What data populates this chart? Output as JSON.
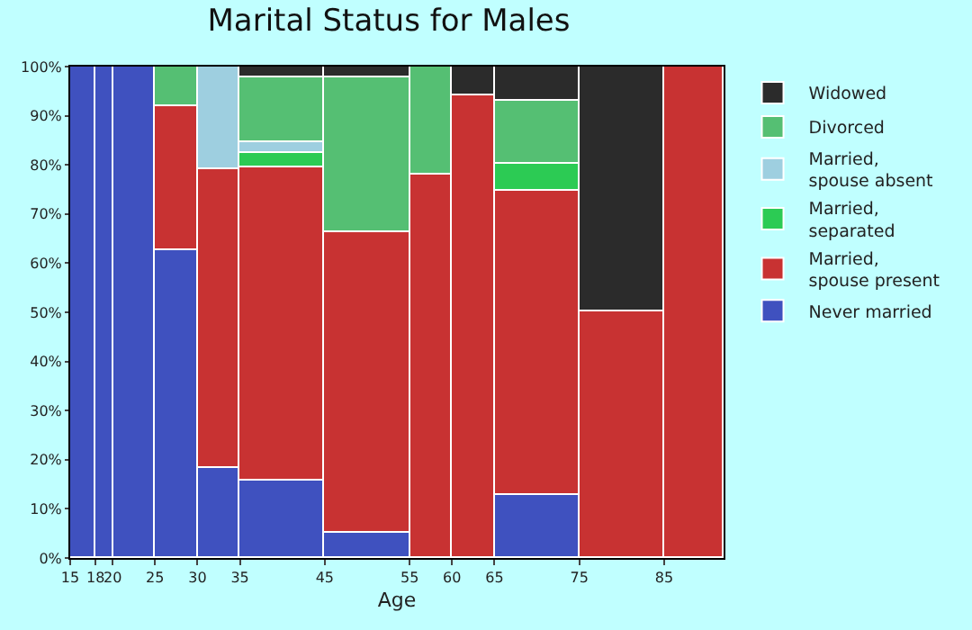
{
  "chart_data": {
    "type": "bar",
    "title": "Marital Status for Males",
    "xlabel": "Age",
    "stacked": true,
    "legend": "right",
    "x": [
      16.5,
      19,
      22.5,
      27.5,
      32.5,
      40,
      50,
      57.5,
      62.5,
      70,
      80,
      88.5
    ],
    "xlim": [
      15,
      92
    ],
    "xticks": [
      15,
      18,
      20,
      25,
      30,
      35,
      45,
      55,
      60,
      65,
      75,
      85
    ],
    "ylim": [
      0,
      100
    ],
    "yticks": [
      {
        "value": 0,
        "label": "0%"
      },
      {
        "value": 10,
        "label": "10%"
      },
      {
        "value": 20,
        "label": "20%"
      },
      {
        "value": 30,
        "label": "30%"
      },
      {
        "value": 40,
        "label": "40%"
      },
      {
        "value": 50,
        "label": "50%"
      },
      {
        "value": 60,
        "label": "60%"
      },
      {
        "value": 70,
        "label": "70%"
      },
      {
        "value": 80,
        "label": "80%"
      },
      {
        "value": 90,
        "label": "90%"
      },
      {
        "value": 100,
        "label": "100%"
      }
    ],
    "series": [
      {
        "name": "Never married",
        "color": "#3f51bf",
        "values": [
          100,
          100,
          100,
          62.7,
          18.5,
          15.8,
          5.3,
          null,
          null,
          12.8,
          null,
          null
        ]
      },
      {
        "name": "Married, spouse present",
        "color": "#c83232",
        "values": [
          null,
          null,
          null,
          29.3,
          60.8,
          63.8,
          61.1,
          78.1,
          94.3,
          62.0,
          50.2,
          100
        ]
      },
      {
        "name": "Married, separated",
        "color": "#2ccb54",
        "values": [
          null,
          null,
          null,
          null,
          null,
          2.7,
          null,
          null,
          null,
          5.5,
          null,
          null
        ]
      },
      {
        "name": "Married, spouse absent",
        "color": "#9ecfe0",
        "values": [
          null,
          null,
          null,
          null,
          20.7,
          2.4,
          null,
          null,
          null,
          null,
          null,
          null
        ]
      },
      {
        "name": "Divorced",
        "color": "#55bf73",
        "values": [
          null,
          null,
          null,
          8.0,
          null,
          13.0,
          31.5,
          21.9,
          null,
          12.9,
          null,
          null
        ]
      },
      {
        "name": "Widowed",
        "color": "#2b2b2b",
        "values": [
          null,
          null,
          null,
          null,
          null,
          2.3,
          2.1,
          null,
          5.7,
          6.8,
          49.8,
          null
        ]
      }
    ]
  }
}
